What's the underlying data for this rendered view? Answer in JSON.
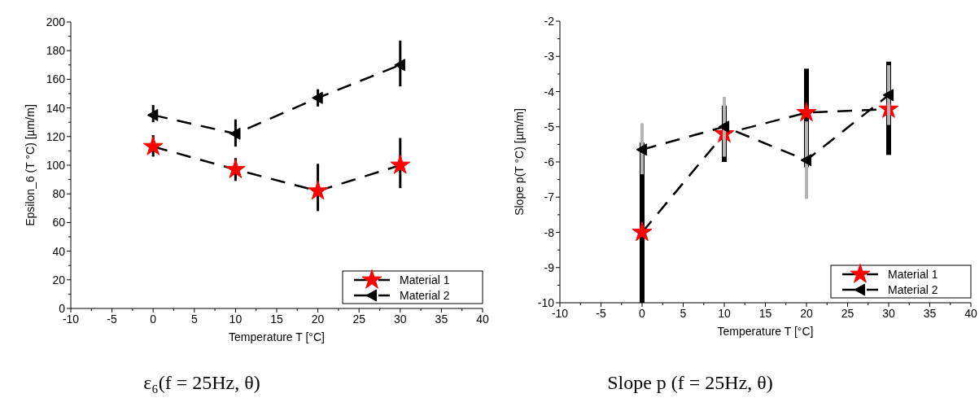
{
  "chart_data": [
    {
      "type": "line",
      "xlabel": "Temperature T [°C]",
      "ylabel": "Epsilon_6 (T °C) [µm/m]",
      "x": [
        0,
        10,
        20,
        30
      ],
      "xlim": [
        -10,
        40
      ],
      "xticks": [
        -10,
        {
          "value": -7.5,
          "label": null
        },
        -5,
        {
          "value": -2.5,
          "label": null
        },
        0,
        {
          "value": 2.5,
          "label": null
        },
        5,
        {
          "value": 7.5,
          "label": null
        },
        10,
        {
          "value": 12.5,
          "label": null
        },
        15,
        {
          "value": 17.5,
          "label": null
        },
        20,
        {
          "value": 22.5,
          "label": null
        },
        25,
        {
          "value": 27.5,
          "label": null
        },
        30,
        {
          "value": 32.5,
          "label": null
        },
        35,
        {
          "value": 37.5,
          "label": null
        },
        40
      ],
      "ylim": [
        0,
        200
      ],
      "yticks": [
        0,
        {
          "value": 10,
          "label": null
        },
        20,
        {
          "value": 30,
          "label": null
        },
        40,
        {
          "value": 50,
          "label": null
        },
        60,
        {
          "value": 70,
          "label": null
        },
        80,
        {
          "value": 90,
          "label": null
        },
        100,
        {
          "value": 110,
          "label": null
        },
        120,
        {
          "value": 130,
          "label": null
        },
        140,
        {
          "value": 150,
          "label": null
        },
        160,
        {
          "value": 170,
          "label": null
        },
        180,
        {
          "value": 190,
          "label": null
        },
        200
      ],
      "line_style": "dashed",
      "legend": "bottom right",
      "grid": false,
      "annotations": [
        "ε₆(f = 25Hz, θ)"
      ],
      "series": [
        {
          "name": "Material 1",
          "color": "#ff0000",
          "marker": "star",
          "values": [
            113,
            97,
            82,
            100
          ],
          "errors": [
            [
              106,
              121
            ],
            [
              89,
              105
            ],
            [
              68,
              101
            ],
            [
              84,
              119
            ]
          ]
        },
        {
          "name": "Material 2",
          "color": "#000000",
          "marker": "triangle",
          "values": [
            135,
            122,
            147,
            170
          ],
          "errors": [
            [
              130,
              142
            ],
            [
              113,
              132
            ],
            [
              141,
              153
            ],
            [
              155,
              187
            ]
          ]
        }
      ]
    },
    {
      "type": "line",
      "xlabel": "Temperature T [°C]",
      "ylabel": "Slope p(T °C) [µm/m]",
      "x": [
        0,
        10,
        20,
        30
      ],
      "xlim": [
        -10,
        40
      ],
      "xticks": [
        -10,
        {
          "value": -7.5,
          "label": null
        },
        -5,
        {
          "value": -2.5,
          "label": null
        },
        0,
        {
          "value": 2.5,
          "label": null
        },
        5,
        {
          "value": 7.5,
          "label": null
        },
        10,
        {
          "value": 12.5,
          "label": null
        },
        15,
        {
          "value": 17.5,
          "label": null
        },
        20,
        {
          "value": 22.5,
          "label": null
        },
        25,
        {
          "value": 27.5,
          "label": null
        },
        30,
        {
          "value": 32.5,
          "label": null
        },
        35,
        {
          "value": 37.5,
          "label": null
        },
        40
      ],
      "ylim": [
        -10,
        -2
      ],
      "yticks": [
        -10,
        {
          "value": -9.5,
          "label": null
        },
        -9,
        {
          "value": -8.5,
          "label": null
        },
        -8,
        {
          "value": -7.5,
          "label": null
        },
        -7,
        {
          "value": -6.5,
          "label": null
        },
        -6,
        {
          "value": -5.5,
          "label": null
        },
        -5,
        {
          "value": -4.5,
          "label": null
        },
        -4,
        {
          "value": -3.5,
          "label": null
        },
        -3,
        {
          "value": -2.5,
          "label": null
        },
        -2
      ],
      "line_style": "dashed",
      "legend": "bottom right",
      "grid": false,
      "annotations": [
        "Slope p (f = 25Hz, θ)"
      ],
      "series": [
        {
          "name": "Material 1",
          "color": "#ff0000",
          "marker": "star",
          "values": [
            -8,
            -5.2,
            -4.6,
            -4.5
          ],
          "errors": [
            [
              -10,
              -5.45
            ],
            [
              -6,
              -4.4
            ],
            [
              -6.15,
              -3.35
            ],
            [
              -5.8,
              -3.15
            ]
          ]
        },
        {
          "name": "Material 2",
          "color": "#000000",
          "marker": "triangle",
          "values": [
            -5.65,
            -5,
            -5.95,
            -4.1
          ],
          "errors": [
            [
              -6.35,
              -4.9
            ],
            [
              -5.85,
              -4.15
            ],
            [
              -7.05,
              -4.85
            ],
            [
              -4.95,
              -3.25
            ]
          ]
        }
      ]
    }
  ]
}
